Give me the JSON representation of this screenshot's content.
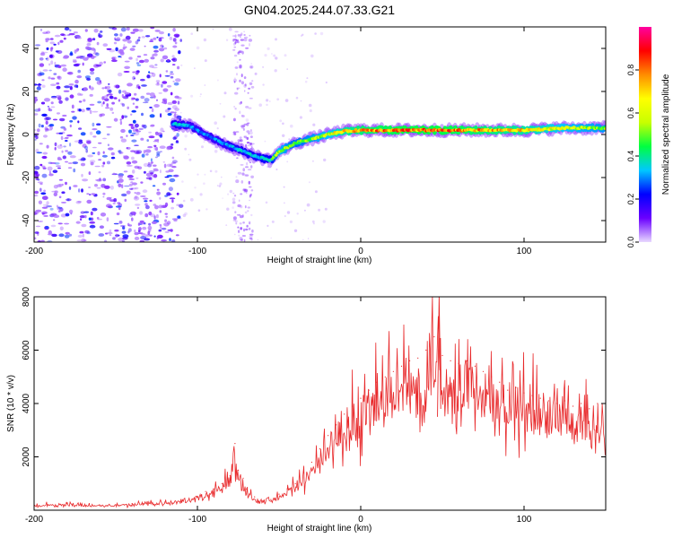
{
  "title": "GN04.2025.244.07.33.G21",
  "chart_data": [
    {
      "type": "heatmap",
      "xlabel": "Height of straight line (km)",
      "ylabel": "Frequency (Hz)",
      "xlim": [
        -200,
        150
      ],
      "ylim": [
        -50,
        50
      ],
      "xticks": [
        -200,
        -100,
        0,
        100
      ],
      "yticks": [
        -40,
        -20,
        0,
        20,
        40
      ],
      "colorbar": {
        "label": "Normalized spectral amplitude",
        "range": [
          0,
          1
        ],
        "ticks": [
          0.0,
          0.2,
          0.4,
          0.6,
          0.8
        ],
        "tick_labels": [
          "0.0",
          "0.2",
          "0.4",
          "0.6",
          "0.8"
        ],
        "colormap": [
          "#e8d8ff",
          "#6a00ff",
          "#0000ff",
          "#00c8ff",
          "#00ff40",
          "#c8ff00",
          "#ffff00",
          "#ff8c00",
          "#ff0000",
          "#ff00a0"
        ]
      },
      "ridge": {
        "x": [
          -115,
          -105,
          -95,
          -85,
          -75,
          -65,
          -55,
          -50,
          -45,
          -40,
          -30,
          -20,
          -10,
          0,
          25,
          50,
          75,
          100,
          125,
          150
        ],
        "y": [
          5,
          4,
          0,
          -4,
          -7,
          -10,
          -12,
          -8,
          -6,
          -4,
          -2,
          0,
          1.5,
          2,
          2,
          2,
          2,
          2,
          3,
          3
        ],
        "amplitude": [
          0.35,
          0.3,
          0.3,
          0.3,
          0.35,
          0.35,
          0.4,
          0.6,
          0.55,
          0.5,
          0.55,
          0.6,
          0.7,
          0.75,
          0.8,
          0.8,
          0.75,
          0.7,
          0.6,
          0.55
        ]
      }
    },
    {
      "type": "line",
      "xlabel": "Height of straight line (km)",
      "ylabel": "SNR (10 * v/v)",
      "xlim": [
        -200,
        150
      ],
      "ylim": [
        0,
        8000
      ],
      "xticks": [
        -200,
        -100,
        0,
        100
      ],
      "yticks": [
        2000,
        4000,
        6000,
        8000
      ],
      "color": "#e8282a",
      "series": [
        {
          "x": [
            -200,
            -180,
            -160,
            -140,
            -120,
            -110,
            -100,
            -95,
            -90,
            -85,
            -80,
            -77,
            -75,
            -72,
            -70,
            -65,
            -60,
            -55,
            -50,
            -45,
            -40,
            -35,
            -30,
            -25,
            -20,
            -15,
            -10,
            -5,
            0,
            5,
            10,
            15,
            20,
            25,
            30,
            35,
            40,
            45,
            48,
            50,
            55,
            60,
            65,
            70,
            75,
            80,
            85,
            90,
            95,
            100,
            105,
            110,
            115,
            120,
            125,
            130,
            135,
            140,
            145,
            150
          ],
          "y": [
            200,
            250,
            200,
            250,
            300,
            400,
            500,
            700,
            800,
            1000,
            1300,
            2500,
            1500,
            1200,
            800,
            500,
            350,
            400,
            600,
            800,
            1000,
            1400,
            1800,
            2300,
            2800,
            3200,
            3600,
            3900,
            4200,
            4500,
            4800,
            5000,
            5200,
            5400,
            5600,
            5700,
            6000,
            6500,
            8000,
            5800,
            5600,
            5500,
            5600,
            5400,
            5200,
            5000,
            4800,
            4500,
            4600,
            4400,
            4300,
            4200,
            4100,
            4000,
            4100,
            3900,
            4000,
            3800,
            4000,
            4100
          ]
        }
      ]
    }
  ]
}
